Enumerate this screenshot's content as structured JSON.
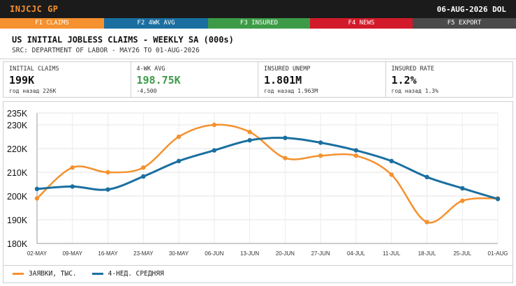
{
  "app": {
    "ticker": "INJCJC GP",
    "date": "06-AUG-2026 DOL"
  },
  "fkeys": [
    {
      "label": "F1 CLAIMS",
      "color": "#f5912e"
    },
    {
      "label": "F2 4WK AVG",
      "color": "#1a6fa0"
    },
    {
      "label": "F3 INSURED",
      "color": "#3d9b48"
    },
    {
      "label": "F4 NEWS",
      "color": "#d21a2a"
    },
    {
      "label": "F5 EXPORT",
      "color": "#4a4a4a"
    }
  ],
  "header": {
    "title": "US INITIAL JOBLESS CLAIMS - WEEKLY SA (000s)",
    "source": "SRC: DEPARTMENT OF LABOR - MAY26 TO 01-AUG-2026"
  },
  "stats": [
    {
      "label": "INITIAL CLAIMS",
      "value": "199K",
      "sub": "год назад 226K",
      "value_color": "#111111"
    },
    {
      "label": "4-WK AVG",
      "value": "198.75K",
      "sub": "-4,500",
      "value_color": "#3d9b48"
    },
    {
      "label": "INSURED UNEMP",
      "value": "1.801M",
      "sub": "год назад 1.963M",
      "value_color": "#111111"
    },
    {
      "label": "INSURED RATE",
      "value": "1.2%",
      "sub": "год назад 1.3%",
      "value_color": "#111111"
    }
  ],
  "chart_data": {
    "type": "line",
    "categories": [
      "02-MAY",
      "09-MAY",
      "16-MAY",
      "23-MAY",
      "30-MAY",
      "06-JUN",
      "13-JUN",
      "20-JUN",
      "27-JUN",
      "04-JUL",
      "11-JUL",
      "18-JUL",
      "25-JUL",
      "01-AUG"
    ],
    "series": [
      {
        "name": "ЗАЯВКИ, ТЫС.",
        "color": "#f5912e",
        "values": [
          199,
          212,
          210,
          212,
          225,
          230,
          227,
          216,
          217,
          217,
          209,
          189,
          198,
          199
        ]
      },
      {
        "name": "4-НЕД. СРЕДНЯЯ",
        "color": "#1a6fa0",
        "values": [
          203,
          204,
          202.75,
          208.25,
          214.75,
          219.25,
          223.5,
          224.5,
          222.5,
          219.25,
          214.75,
          208,
          203.25,
          198.75
        ]
      }
    ],
    "ylim": [
      180,
      235
    ],
    "yticks": [
      180,
      190,
      200,
      210,
      220,
      230,
      235
    ],
    "ytick_labels": [
      "180K",
      "190K",
      "200K",
      "210K",
      "220K",
      "230K",
      "235K"
    ],
    "grid": true,
    "legend": "bottom-left"
  }
}
